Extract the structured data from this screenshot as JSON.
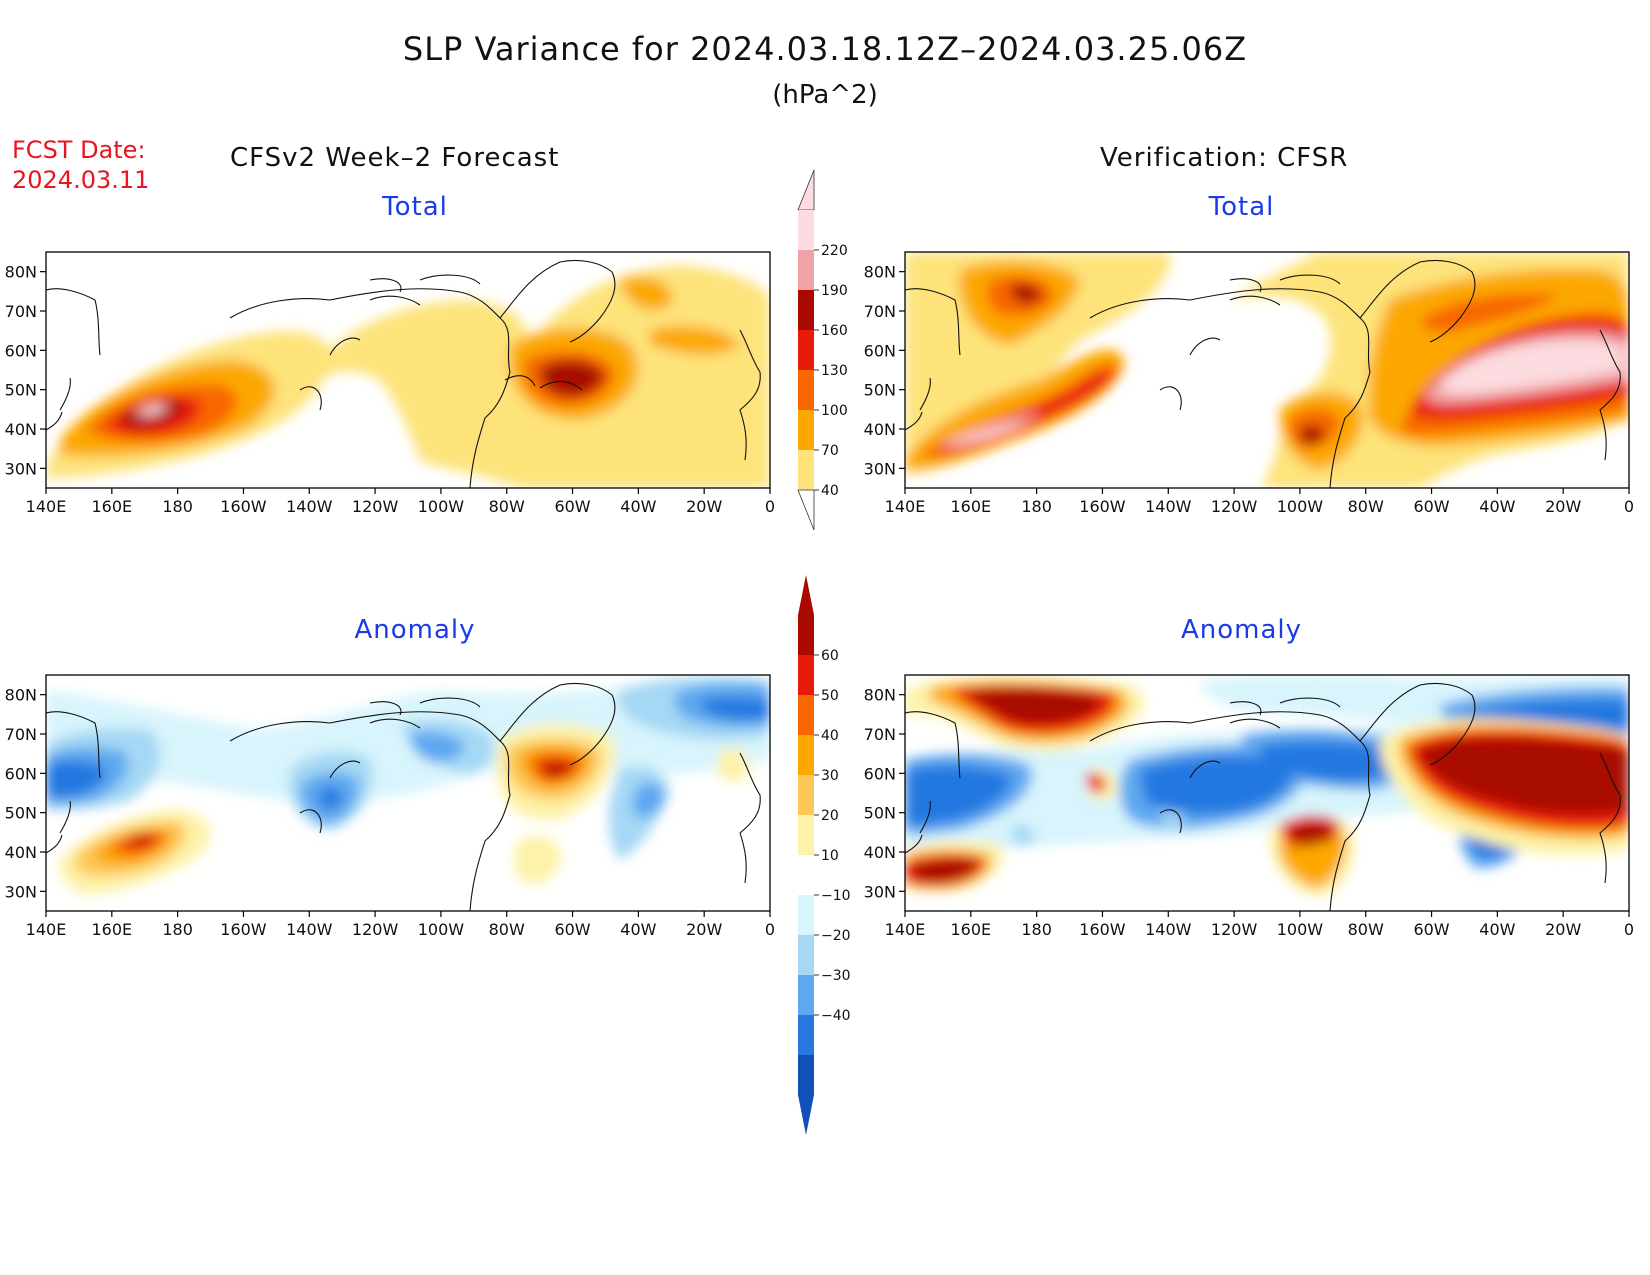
{
  "header": {
    "title": "SLP Variance for 2024.03.18.12Z–2024.03.25.06Z",
    "units": "(hPa^2)",
    "fcst_label": "FCST Date:",
    "fcst_date": "2024.03.11"
  },
  "columns": {
    "left": "CFSv2 Week–2 Forecast",
    "right": "Verification: CFSR"
  },
  "panels": {
    "total_left": "Total",
    "total_right": "Total",
    "anom_left": "Anomaly",
    "anom_right": "Anomaly"
  },
  "axes": {
    "lon_ticks": [
      "140E",
      "160E",
      "180",
      "160W",
      "140W",
      "120W",
      "100W",
      "80W",
      "60W",
      "40W",
      "20W",
      "0"
    ],
    "lat_ticks": [
      "80N",
      "70N",
      "60N",
      "50N",
      "40N",
      "30N"
    ],
    "lon_range_deg_east": [
      140,
      360
    ],
    "lat_range": [
      25,
      85
    ]
  },
  "colorbars": {
    "total": {
      "levels": [
        "40",
        "70",
        "100",
        "130",
        "160",
        "190",
        "220"
      ],
      "colors": [
        "#fde37a",
        "#fca800",
        "#f86800",
        "#e81a08",
        "#a80a00",
        "#f0a2a4",
        "#fcdce0"
      ]
    },
    "anomaly": {
      "levels": [
        "60",
        "50",
        "40",
        "30",
        "20",
        "10",
        "−10",
        "−20",
        "−30",
        "−40"
      ],
      "pos_colors": [
        "#a80a00",
        "#e81a08",
        "#f86800",
        "#fca800",
        "#fdc858",
        "#fdf2a8"
      ],
      "neg_colors": [
        "#d8f4fc",
        "#a4d8f4",
        "#5ea8f0",
        "#2478e0",
        "#1050b8"
      ]
    }
  }
}
